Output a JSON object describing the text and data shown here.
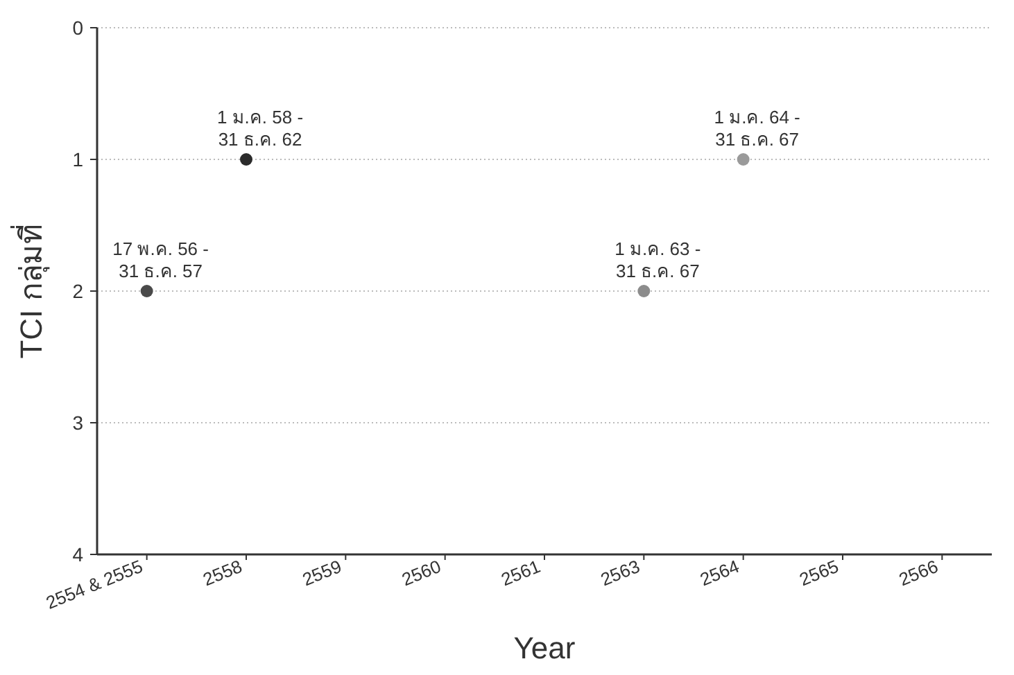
{
  "chart_data": {
    "type": "scatter",
    "xlabel": "Year",
    "ylabel": "TCI กลุ่มที่",
    "categories": [
      "2554 & 2555",
      "2558",
      "2559",
      "2560",
      "2561",
      "2563",
      "2564",
      "2565",
      "2566"
    ],
    "values": [
      2,
      1,
      null,
      null,
      null,
      2,
      1,
      null,
      null
    ],
    "colors": [
      "#4a4a4a",
      "#2b2b2b",
      null,
      null,
      null,
      "#8c8c8c",
      "#9a9a9a",
      null,
      null
    ],
    "value_labels": [
      "17 พ.ค. 56 - 31 ธ.ค. 57",
      "1 ม.ค. 58 - 31 ธ.ค. 62",
      null,
      null,
      null,
      "1 ม.ค. 63 - 31 ธ.ค. 67",
      "1 ม.ค. 64 - 31 ธ.ค. 67",
      null,
      null
    ],
    "ylim": [
      4,
      0
    ],
    "yticks": [
      0,
      1,
      2,
      3,
      4
    ],
    "grid": "y",
    "marker": "circle"
  }
}
